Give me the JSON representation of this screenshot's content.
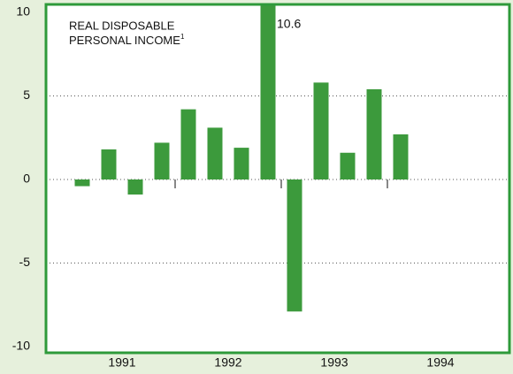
{
  "chart_data": {
    "type": "bar",
    "title": [
      "REAL DISPOSABLE",
      "PERSONAL INCOME"
    ],
    "title_footnote": "1",
    "categories": [
      null,
      null,
      null,
      null,
      null,
      null,
      null,
      null,
      null,
      null,
      null,
      null,
      null,
      null,
      null,
      null
    ],
    "years": [
      "1991",
      "1992",
      "1993",
      "1994"
    ],
    "values": [
      -0.4,
      1.8,
      -0.9,
      2.2,
      4.2,
      3.1,
      1.9,
      10.6,
      -7.9,
      5.8,
      1.6,
      5.4,
      2.7,
      null,
      null,
      null
    ],
    "color": "#3c9a3c",
    "ylim": [
      -10,
      10
    ],
    "yticks": [
      -10,
      -5,
      0,
      5,
      10
    ],
    "grid": true
  }
}
